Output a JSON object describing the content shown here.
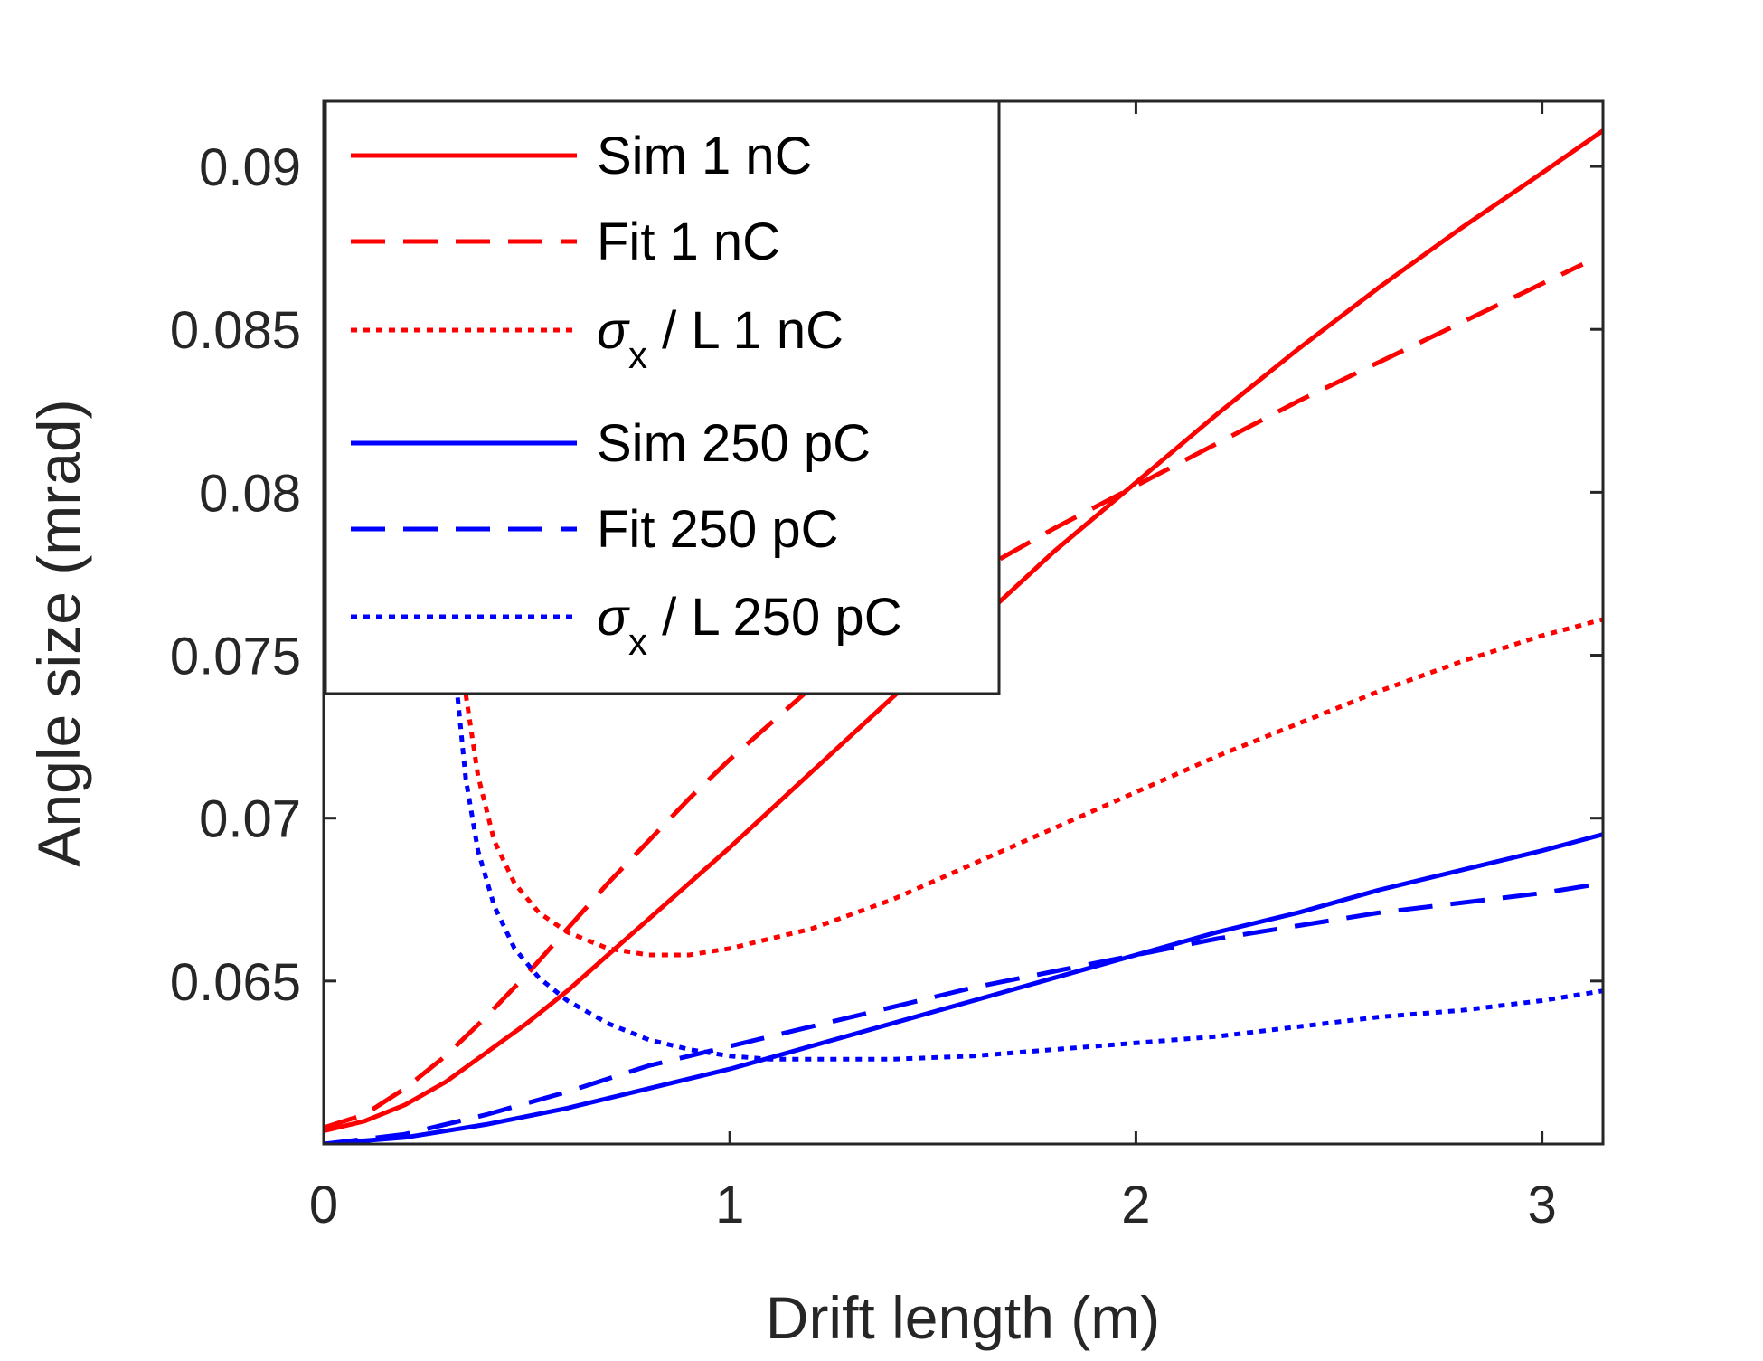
{
  "chart_data": {
    "type": "line",
    "xlabel": "Drift length (m)",
    "ylabel": "Angle size (mrad)",
    "xlim": [
      0,
      3.15
    ],
    "ylim": [
      0.06,
      0.092
    ],
    "xticks": [
      0,
      1,
      2,
      3
    ],
    "xtick_labels": [
      "0",
      "1",
      "2",
      "3"
    ],
    "yticks": [
      0.065,
      0.07,
      0.075,
      0.08,
      0.085,
      0.09
    ],
    "ytick_labels": [
      "0.065",
      "0.07",
      "0.075",
      "0.08",
      "0.085",
      "0.09"
    ],
    "grid": false,
    "legend_position": "top-left",
    "series": [
      {
        "name": "Sim 1 nC",
        "legend": {
          "text": "Sim 1 nC"
        },
        "color": "#ff0000",
        "dash": "solid",
        "x": [
          0,
          0.1,
          0.2,
          0.3,
          0.4,
          0.5,
          0.6,
          0.7,
          0.8,
          0.9,
          1.0,
          1.2,
          1.4,
          1.6,
          1.8,
          2.0,
          2.2,
          2.4,
          2.6,
          2.8,
          3.0,
          3.15
        ],
        "y": [
          0.0604,
          0.0607,
          0.0612,
          0.0619,
          0.0628,
          0.0637,
          0.0647,
          0.0658,
          0.0669,
          0.068,
          0.0691,
          0.0714,
          0.0737,
          0.0759,
          0.0782,
          0.0803,
          0.0824,
          0.0844,
          0.0863,
          0.0881,
          0.0898,
          0.0911
        ]
      },
      {
        "name": "Fit 1 nC",
        "legend": {
          "text": "Fit 1 nC"
        },
        "color": "#ff0000",
        "dash": "dashed",
        "x": [
          0,
          0.1,
          0.2,
          0.3,
          0.4,
          0.5,
          0.6,
          0.7,
          0.8,
          0.9,
          1.0,
          1.2,
          1.4,
          1.6,
          1.8,
          2.0,
          2.2,
          2.4,
          2.6,
          2.8,
          3.0,
          3.1
        ],
        "y": [
          0.0605,
          0.0609,
          0.0617,
          0.0627,
          0.0639,
          0.0652,
          0.0666,
          0.068,
          0.0693,
          0.0706,
          0.0718,
          0.074,
          0.0759,
          0.0775,
          0.0789,
          0.0802,
          0.0815,
          0.0828,
          0.084,
          0.0852,
          0.0864,
          0.087
        ]
      },
      {
        "name": "σx / L 1 nC",
        "legend": {
          "main": "σ",
          "sub": "x",
          "rest": " / L 1 nC"
        },
        "color": "#ff0000",
        "dash": "dotted",
        "x": [
          0.35,
          0.38,
          0.42,
          0.47,
          0.53,
          0.6,
          0.7,
          0.8,
          0.9,
          1.0,
          1.2,
          1.4,
          1.6,
          1.8,
          2.0,
          2.2,
          2.4,
          2.6,
          2.8,
          3.0,
          3.15
        ],
        "y": [
          0.0738,
          0.0713,
          0.0693,
          0.068,
          0.0671,
          0.0665,
          0.066,
          0.0658,
          0.0658,
          0.066,
          0.0666,
          0.0675,
          0.0686,
          0.0697,
          0.0708,
          0.0719,
          0.0729,
          0.0739,
          0.0748,
          0.0756,
          0.0761
        ]
      },
      {
        "name": "Sim 250 pC",
        "legend": {
          "text": "Sim 250 pC"
        },
        "color": "#0000ff",
        "dash": "solid",
        "x": [
          0,
          0.2,
          0.4,
          0.6,
          0.8,
          1.0,
          1.2,
          1.4,
          1.6,
          1.8,
          2.0,
          2.2,
          2.4,
          2.6,
          2.8,
          3.0,
          3.15
        ],
        "y": [
          0.06,
          0.0602,
          0.0606,
          0.0611,
          0.0617,
          0.0623,
          0.063,
          0.0637,
          0.0644,
          0.0651,
          0.0658,
          0.0665,
          0.0671,
          0.0678,
          0.0684,
          0.069,
          0.0695
        ]
      },
      {
        "name": "Fit 250 pC",
        "legend": {
          "text": "Fit 250 pC"
        },
        "color": "#0000ff",
        "dash": "dashed",
        "x": [
          0,
          0.2,
          0.4,
          0.6,
          0.8,
          1.0,
          1.2,
          1.4,
          1.6,
          1.8,
          2.0,
          2.2,
          2.4,
          2.6,
          2.8,
          3.0,
          3.15
        ],
        "y": [
          0.06,
          0.0603,
          0.0609,
          0.0616,
          0.0624,
          0.063,
          0.0636,
          0.0642,
          0.0648,
          0.0653,
          0.0658,
          0.0663,
          0.0667,
          0.0671,
          0.0674,
          0.0677,
          0.068
        ]
      },
      {
        "name": "σx / L 250 pC",
        "legend": {
          "main": "σ",
          "sub": "x",
          "rest": " / L 250 pC"
        },
        "color": "#0000ff",
        "dash": "dotted",
        "x": [
          0.33,
          0.35,
          0.38,
          0.42,
          0.47,
          0.53,
          0.6,
          0.7,
          0.8,
          0.9,
          1.0,
          1.1,
          1.2,
          1.4,
          1.6,
          1.8,
          2.0,
          2.2,
          2.4,
          2.6,
          2.8,
          3.0,
          3.15
        ],
        "y": [
          0.0737,
          0.0712,
          0.069,
          0.0673,
          0.066,
          0.0651,
          0.0644,
          0.0637,
          0.0632,
          0.0629,
          0.0627,
          0.0626,
          0.0626,
          0.0626,
          0.0627,
          0.0629,
          0.0631,
          0.0633,
          0.0636,
          0.0639,
          0.0641,
          0.0644,
          0.0647
        ]
      }
    ]
  }
}
